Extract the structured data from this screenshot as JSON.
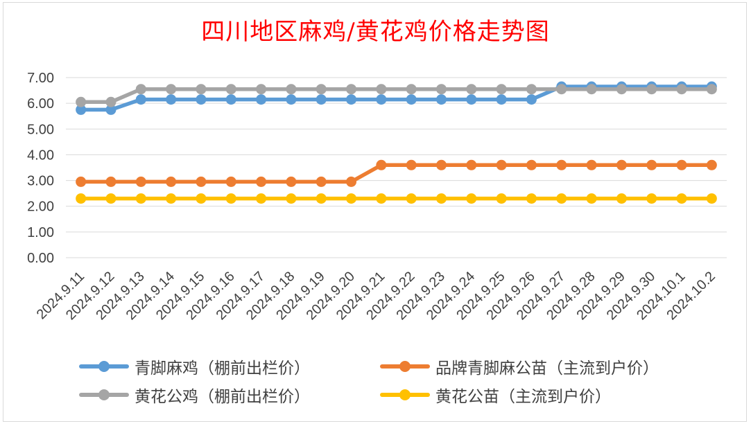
{
  "chart_data": {
    "type": "line",
    "title": "四川地区麻鸡/黄花鸡价格走势图",
    "xlabel": "",
    "ylabel": "",
    "ylim": [
      0,
      7
    ],
    "yticks": [
      "0.00",
      "1.00",
      "2.00",
      "3.00",
      "4.00",
      "5.00",
      "6.00",
      "7.00"
    ],
    "grid": true,
    "legend_position": "bottom",
    "categories": [
      "2024.9.11",
      "2024.9.12",
      "2024.9.13",
      "2024.9.14",
      "2024.9.15",
      "2024.9.16",
      "2024.9.17",
      "2024.9.18",
      "2024.9.19",
      "2024.9.20",
      "2024.9.21",
      "2024.9.22",
      "2024.9.23",
      "2024.9.24",
      "2024.9.25",
      "2024.9.26",
      "2024.9.27",
      "2024.9.28",
      "2024.9.29",
      "2024.9.30",
      "2024.10.1",
      "2024.10.2"
    ],
    "series": [
      {
        "name": "黄花公苗（主流到户价）",
        "color": "#ffc000",
        "values": [
          2.3,
          2.3,
          2.3,
          2.3,
          2.3,
          2.3,
          2.3,
          2.3,
          2.3,
          2.3,
          2.3,
          2.3,
          2.3,
          2.3,
          2.3,
          2.3,
          2.3,
          2.3,
          2.3,
          2.3,
          2.3,
          2.3
        ]
      },
      {
        "name": "品牌青脚麻公苗（主流到户价）",
        "color": "#ed7d31",
        "values": [
          2.95,
          2.95,
          2.95,
          2.95,
          2.95,
          2.95,
          2.95,
          2.95,
          2.95,
          2.95,
          3.6,
          3.6,
          3.6,
          3.6,
          3.6,
          3.6,
          3.6,
          3.6,
          3.6,
          3.6,
          3.6,
          3.6
        ]
      },
      {
        "name": "青脚麻鸡（棚前出栏价）",
        "color": "#5b9bd5",
        "values": [
          5.75,
          5.75,
          6.15,
          6.15,
          6.15,
          6.15,
          6.15,
          6.15,
          6.15,
          6.15,
          6.15,
          6.15,
          6.15,
          6.15,
          6.15,
          6.15,
          6.65,
          6.65,
          6.65,
          6.65,
          6.65,
          6.65
        ]
      },
      {
        "name": "黄花公鸡（棚前出栏价）",
        "color": "#a5a5a5",
        "values": [
          6.05,
          6.05,
          6.55,
          6.55,
          6.55,
          6.55,
          6.55,
          6.55,
          6.55,
          6.55,
          6.55,
          6.55,
          6.55,
          6.55,
          6.55,
          6.55,
          6.55,
          6.55,
          6.55,
          6.55,
          6.55,
          6.55
        ]
      }
    ]
  },
  "legend": [
    {
      "label": "青脚麻鸡（棚前出栏价）",
      "color": "#5b9bd5"
    },
    {
      "label": "品牌青脚麻公苗（主流到户价）",
      "color": "#ed7d31"
    },
    {
      "label": "黄花公鸡（棚前出栏价）",
      "color": "#a5a5a5"
    },
    {
      "label": "黄花公苗（主流到户价）",
      "color": "#ffc000"
    }
  ]
}
